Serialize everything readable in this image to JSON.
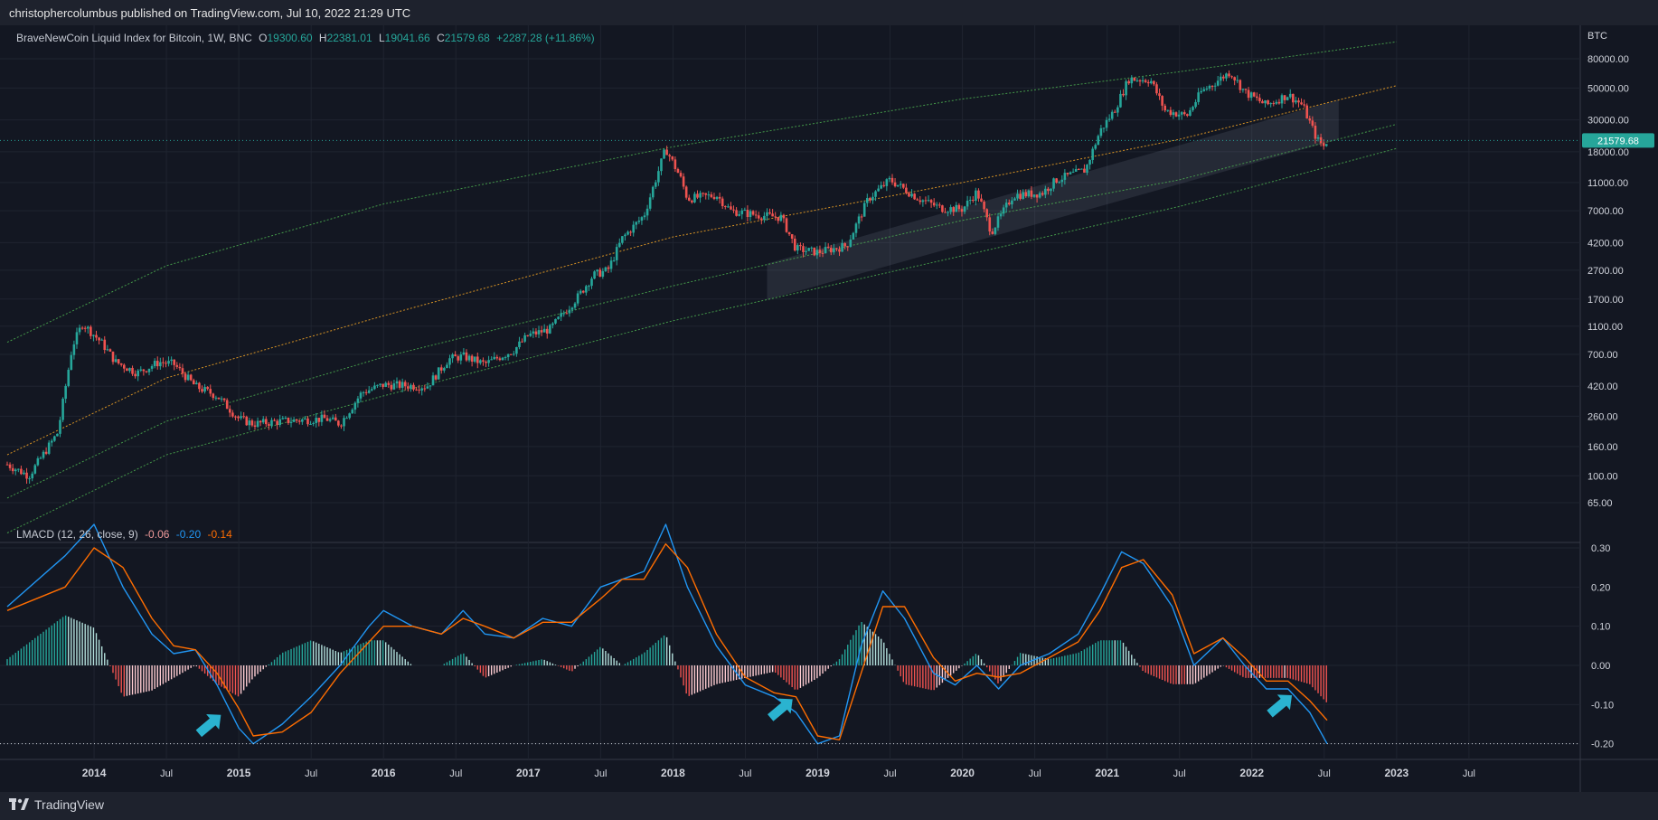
{
  "header": {
    "published": "christophercolumbus published on TradingView.com, Jul 10, 2022 21:29 UTC"
  },
  "footer": {
    "brand": "TradingView"
  },
  "price_legend": {
    "symbol": "BraveNewCoin Liquid Index for Bitcoin, 1W, BNC",
    "o_label": "O",
    "o": "19300.60",
    "h_label": "H",
    "h": "22381.01",
    "l_label": "L",
    "l": "19041.66",
    "c_label": "C",
    "c": "21579.68",
    "change": "+2287.28 (+11.86%)"
  },
  "macd_legend": {
    "name": "LMACD (12, 26, close, 9)",
    "v1": "-0.06",
    "v2": "-0.20",
    "v3": "-0.14"
  },
  "colors": {
    "background": "#131722",
    "up": "#26a69a",
    "down": "#ef5350",
    "macd": "#2196f3",
    "signal": "#ff6d00",
    "channel": "#4caf50",
    "mid_channel": "#f9a825",
    "accent_arrow": "#2ab3d0"
  },
  "chart_data": [
    {
      "type": "candlestick",
      "scale": "log",
      "currency_label": "BTC",
      "y_ticks": [
        "80000.00",
        "50000.00",
        "30000.00",
        "18000.00",
        "11000.00",
        "7000.00",
        "4200.00",
        "2700.00",
        "1700.00",
        "1100.00",
        "700.00",
        "420.00",
        "260.00",
        "160.00",
        "100.00",
        "65.00"
      ],
      "last_price": "21579.68",
      "x_ticks": [
        "2014",
        "Jul",
        "2015",
        "Jul",
        "2016",
        "Jul",
        "2017",
        "Jul",
        "2018",
        "Jul",
        "2019",
        "Jul",
        "2020",
        "Jul",
        "2021",
        "Jul",
        "2022",
        "Jul",
        "2023",
        "Jul"
      ],
      "x_tick_dates": [
        2014.0,
        2014.5,
        2015.0,
        2015.5,
        2016.0,
        2016.5,
        2017.0,
        2017.5,
        2018.0,
        2018.5,
        2019.0,
        2019.5,
        2020.0,
        2020.5,
        2021.0,
        2021.5,
        2022.0,
        2022.5,
        2023.0,
        2023.5
      ],
      "price_path": [
        [
          2013.4,
          120
        ],
        [
          2013.55,
          100
        ],
        [
          2013.75,
          200
        ],
        [
          2013.85,
          800
        ],
        [
          2013.92,
          1150
        ],
        [
          2014.05,
          850
        ],
        [
          2014.15,
          620
        ],
        [
          2014.3,
          520
        ],
        [
          2014.45,
          620
        ],
        [
          2014.55,
          600
        ],
        [
          2014.7,
          420
        ],
        [
          2014.85,
          360
        ],
        [
          2015.0,
          250
        ],
        [
          2015.1,
          230
        ],
        [
          2015.3,
          240
        ],
        [
          2015.6,
          250
        ],
        [
          2015.7,
          230
        ],
        [
          2015.85,
          380
        ],
        [
          2016.0,
          430
        ],
        [
          2016.3,
          420
        ],
        [
          2016.45,
          650
        ],
        [
          2016.55,
          680
        ],
        [
          2016.7,
          600
        ],
        [
          2016.9,
          750
        ],
        [
          2017.0,
          950
        ],
        [
          2017.15,
          1050
        ],
        [
          2017.35,
          1800
        ],
        [
          2017.45,
          2500
        ],
        [
          2017.55,
          2700
        ],
        [
          2017.65,
          4500
        ],
        [
          2017.8,
          6500
        ],
        [
          2017.95,
          19000
        ],
        [
          2018.05,
          12000
        ],
        [
          2018.1,
          8500
        ],
        [
          2018.3,
          9000
        ],
        [
          2018.4,
          7000
        ],
        [
          2018.6,
          6500
        ],
        [
          2018.75,
          6300
        ],
        [
          2018.85,
          3800
        ],
        [
          2019.0,
          3600
        ],
        [
          2019.2,
          4000
        ],
        [
          2019.35,
          8500
        ],
        [
          2019.5,
          11500
        ],
        [
          2019.7,
          8500
        ],
        [
          2019.85,
          7300
        ],
        [
          2020.0,
          7200
        ],
        [
          2020.1,
          9500
        ],
        [
          2020.2,
          5000
        ],
        [
          2020.35,
          9000
        ],
        [
          2020.55,
          9300
        ],
        [
          2020.65,
          11500
        ],
        [
          2020.85,
          13500
        ],
        [
          2020.95,
          25000
        ],
        [
          2021.05,
          35000
        ],
        [
          2021.15,
          58000
        ],
        [
          2021.3,
          57000
        ],
        [
          2021.4,
          35000
        ],
        [
          2021.55,
          32000
        ],
        [
          2021.65,
          47000
        ],
        [
          2021.85,
          65000
        ],
        [
          2021.95,
          47000
        ],
        [
          2022.1,
          38000
        ],
        [
          2022.25,
          45000
        ],
        [
          2022.35,
          38000
        ],
        [
          2022.45,
          22000
        ],
        [
          2022.5,
          19500
        ],
        [
          2022.52,
          21579.68
        ]
      ],
      "channel_lines": [
        {
          "style": "upper",
          "points": [
            [
              2013.4,
              850
            ],
            [
              2014.5,
              2900
            ],
            [
              2016.0,
              7800
            ],
            [
              2018.0,
              19500
            ],
            [
              2020.0,
              42000
            ],
            [
              2021.5,
              65000
            ],
            [
              2023.0,
              105000
            ]
          ]
        },
        {
          "style": "mid",
          "points": [
            [
              2013.4,
              140
            ],
            [
              2014.5,
              480
            ],
            [
              2016.0,
              1300
            ],
            [
              2018.0,
              4600
            ],
            [
              2020.0,
              11000
            ],
            [
              2021.5,
              22000
            ],
            [
              2023.0,
              52000
            ]
          ]
        },
        {
          "style": "lower_a",
          "points": [
            [
              2013.4,
              70
            ],
            [
              2014.5,
              240
            ],
            [
              2016.0,
              670
            ],
            [
              2018.0,
              2100
            ],
            [
              2020.0,
              6000
            ],
            [
              2021.5,
              11500
            ],
            [
              2023.0,
              28000
            ]
          ]
        },
        {
          "style": "lower_b",
          "points": [
            [
              2013.4,
              40
            ],
            [
              2014.5,
              140
            ],
            [
              2016.0,
              360
            ],
            [
              2018.0,
              1200
            ],
            [
              2020.0,
              3400
            ],
            [
              2021.5,
              7500
            ],
            [
              2023.0,
              19000
            ]
          ]
        }
      ],
      "support_band": [
        [
          2018.65,
          3000
        ],
        [
          2022.6,
          22000
        ]
      ]
    },
    {
      "type": "line",
      "title": "LMACD (12, 26, close, 9)",
      "y_ticks": [
        "0.30",
        "0.20",
        "0.10",
        "0.00",
        "-0.10",
        "-0.20"
      ],
      "y_tick_values": [
        0.3,
        0.2,
        0.1,
        0.0,
        -0.1,
        -0.2
      ],
      "last_value": "-0.20",
      "series": [
        {
          "key": "macd",
          "values": [
            [
              2013.4,
              0.15
            ],
            [
              2013.8,
              0.28
            ],
            [
              2014.0,
              0.36
            ],
            [
              2014.2,
              0.2
            ],
            [
              2014.4,
              0.08
            ],
            [
              2014.55,
              0.03
            ],
            [
              2014.7,
              0.04
            ],
            [
              2014.85,
              -0.05
            ],
            [
              2015.0,
              -0.16
            ],
            [
              2015.1,
              -0.2
            ],
            [
              2015.3,
              -0.15
            ],
            [
              2015.5,
              -0.08
            ],
            [
              2015.7,
              0.0
            ],
            [
              2015.9,
              0.1
            ],
            [
              2016.0,
              0.14
            ],
            [
              2016.2,
              0.1
            ],
            [
              2016.4,
              0.08
            ],
            [
              2016.55,
              0.14
            ],
            [
              2016.7,
              0.08
            ],
            [
              2016.9,
              0.07
            ],
            [
              2017.1,
              0.12
            ],
            [
              2017.3,
              0.1
            ],
            [
              2017.5,
              0.2
            ],
            [
              2017.65,
              0.22
            ],
            [
              2017.8,
              0.24
            ],
            [
              2017.95,
              0.36
            ],
            [
              2018.1,
              0.2
            ],
            [
              2018.3,
              0.05
            ],
            [
              2018.5,
              -0.05
            ],
            [
              2018.7,
              -0.08
            ],
            [
              2018.85,
              -0.12
            ],
            [
              2019.0,
              -0.2
            ],
            [
              2019.15,
              -0.18
            ],
            [
              2019.3,
              0.05
            ],
            [
              2019.45,
              0.19
            ],
            [
              2019.6,
              0.12
            ],
            [
              2019.8,
              -0.02
            ],
            [
              2019.95,
              -0.05
            ],
            [
              2020.1,
              0.0
            ],
            [
              2020.25,
              -0.06
            ],
            [
              2020.4,
              0.0
            ],
            [
              2020.6,
              0.03
            ],
            [
              2020.8,
              0.08
            ],
            [
              2020.95,
              0.18
            ],
            [
              2021.1,
              0.29
            ],
            [
              2021.25,
              0.26
            ],
            [
              2021.45,
              0.15
            ],
            [
              2021.6,
              0.0
            ],
            [
              2021.8,
              0.07
            ],
            [
              2021.95,
              0.0
            ],
            [
              2022.1,
              -0.06
            ],
            [
              2022.25,
              -0.06
            ],
            [
              2022.4,
              -0.12
            ],
            [
              2022.52,
              -0.2
            ]
          ]
        },
        {
          "key": "signal",
          "values": [
            [
              2013.4,
              0.14
            ],
            [
              2013.8,
              0.2
            ],
            [
              2014.0,
              0.3
            ],
            [
              2014.2,
              0.25
            ],
            [
              2014.4,
              0.12
            ],
            [
              2014.55,
              0.05
            ],
            [
              2014.7,
              0.04
            ],
            [
              2014.85,
              -0.02
            ],
            [
              2015.0,
              -0.11
            ],
            [
              2015.1,
              -0.18
            ],
            [
              2015.3,
              -0.17
            ],
            [
              2015.5,
              -0.12
            ],
            [
              2015.7,
              -0.02
            ],
            [
              2015.9,
              0.06
            ],
            [
              2016.0,
              0.1
            ],
            [
              2016.2,
              0.1
            ],
            [
              2016.4,
              0.08
            ],
            [
              2016.55,
              0.12
            ],
            [
              2016.7,
              0.1
            ],
            [
              2016.9,
              0.07
            ],
            [
              2017.1,
              0.11
            ],
            [
              2017.3,
              0.11
            ],
            [
              2017.5,
              0.17
            ],
            [
              2017.65,
              0.22
            ],
            [
              2017.8,
              0.22
            ],
            [
              2017.95,
              0.31
            ],
            [
              2018.1,
              0.25
            ],
            [
              2018.3,
              0.08
            ],
            [
              2018.5,
              -0.03
            ],
            [
              2018.7,
              -0.07
            ],
            [
              2018.85,
              -0.08
            ],
            [
              2019.0,
              -0.18
            ],
            [
              2019.15,
              -0.19
            ],
            [
              2019.3,
              -0.02
            ],
            [
              2019.45,
              0.15
            ],
            [
              2019.6,
              0.15
            ],
            [
              2019.8,
              0.02
            ],
            [
              2019.95,
              -0.04
            ],
            [
              2020.1,
              -0.02
            ],
            [
              2020.25,
              -0.03
            ],
            [
              2020.4,
              -0.02
            ],
            [
              2020.6,
              0.02
            ],
            [
              2020.8,
              0.06
            ],
            [
              2020.95,
              0.14
            ],
            [
              2021.1,
              0.25
            ],
            [
              2021.25,
              0.27
            ],
            [
              2021.45,
              0.18
            ],
            [
              2021.6,
              0.03
            ],
            [
              2021.8,
              0.07
            ],
            [
              2021.95,
              0.02
            ],
            [
              2022.1,
              -0.04
            ],
            [
              2022.25,
              -0.04
            ],
            [
              2022.4,
              -0.09
            ],
            [
              2022.52,
              -0.14
            ]
          ]
        }
      ],
      "arrows": [
        [
          2014.8,
          -0.15
        ],
        [
          2018.75,
          -0.11
        ],
        [
          2022.2,
          -0.1
        ]
      ]
    }
  ]
}
